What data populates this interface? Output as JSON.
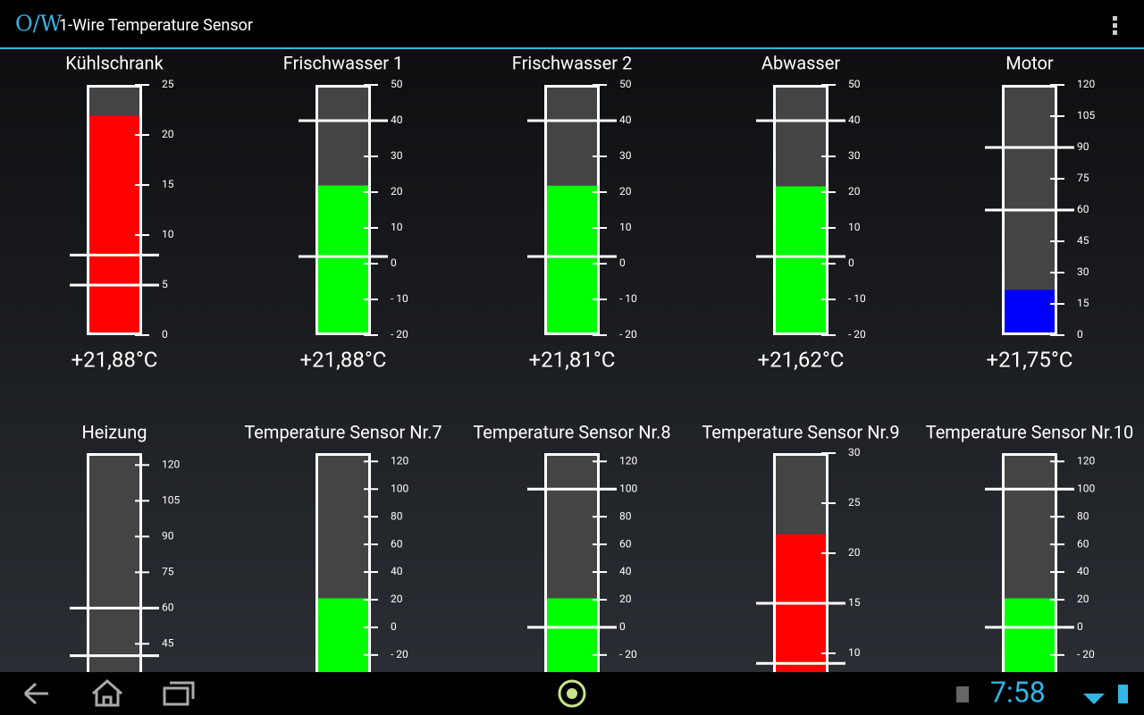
{
  "app": {
    "logo": "O/W",
    "title": "1-Wire Temperature Sensor"
  },
  "status_bar": {
    "time": "7:58"
  },
  "sensors": [
    {
      "name": "Kühlschrank",
      "value": 21.88,
      "value_label": "+21,88°C",
      "color": "#ff0000",
      "ylim": [
        0,
        25
      ],
      "ticks": [
        0,
        5,
        10,
        15,
        20,
        25
      ],
      "thresholds": [
        5,
        8
      ]
    },
    {
      "name": "Frischwasser 1",
      "value": 21.88,
      "value_label": "+21,88°C",
      "color": "#00ff00",
      "ylim": [
        -20,
        50
      ],
      "ticks": [
        {
          "value": -20,
          "label": "- 20"
        },
        {
          "value": -10,
          "label": "- 10"
        },
        0,
        10,
        20,
        30,
        40,
        50
      ],
      "thresholds": [
        2,
        40
      ]
    },
    {
      "name": "Frischwasser 2",
      "value": 21.81,
      "value_label": "+21,81°C",
      "color": "#00ff00",
      "ylim": [
        -20,
        50
      ],
      "ticks": [
        {
          "value": -20,
          "label": "- 20"
        },
        {
          "value": -10,
          "label": "- 10"
        },
        0,
        10,
        20,
        30,
        40,
        50
      ],
      "thresholds": [
        2,
        40
      ]
    },
    {
      "name": "Abwasser",
      "value": 21.62,
      "value_label": "+21,62°C",
      "color": "#00ff00",
      "ylim": [
        -20,
        50
      ],
      "ticks": [
        {
          "value": -20,
          "label": "- 20"
        },
        {
          "value": -10,
          "label": "- 10"
        },
        0,
        10,
        20,
        30,
        40,
        50
      ],
      "thresholds": [
        2,
        40
      ]
    },
    {
      "name": "Motor",
      "value": 21.75,
      "value_label": "+21,75°C",
      "color": "#0000ff",
      "ylim": [
        0,
        120
      ],
      "ticks": [
        0,
        15,
        30,
        45,
        60,
        75,
        90,
        105,
        120
      ],
      "thresholds": [
        60,
        90
      ]
    },
    {
      "name": "Heizung",
      "ylim": [
        20,
        125
      ],
      "ticks": [
        45,
        60,
        75,
        90,
        105,
        120
      ],
      "thresholds": [
        40,
        60
      ]
    },
    {
      "name": "Temperature Sensor Nr.7",
      "value": 21,
      "color": "#00ff00",
      "ylim": [
        -55,
        126
      ],
      "ticks": [
        {
          "value": -20,
          "label": "- 20"
        },
        0,
        20,
        40,
        60,
        80,
        100,
        120
      ],
      "thresholds": []
    },
    {
      "name": "Temperature Sensor Nr.8",
      "value": 21,
      "color": "#00ff00",
      "ylim": [
        -55,
        126
      ],
      "ticks": [
        {
          "value": -20,
          "label": "- 20"
        },
        0,
        20,
        40,
        60,
        80,
        100,
        120
      ],
      "thresholds": [
        0,
        100
      ]
    },
    {
      "name": "Temperature Sensor Nr.9",
      "value": 21.9,
      "color": "#ff0000",
      "ylim": [
        5,
        30
      ],
      "ticks": [
        10,
        15,
        20,
        25,
        30
      ],
      "thresholds": [
        9,
        15
      ]
    },
    {
      "name": "Temperature Sensor Nr.10",
      "value": 21,
      "color": "#00ff00",
      "ylim": [
        -55,
        126
      ],
      "ticks": [
        {
          "value": -20,
          "label": "- 20"
        },
        0,
        20,
        40,
        60,
        80,
        100,
        120
      ],
      "thresholds": [
        0,
        100
      ]
    }
  ]
}
